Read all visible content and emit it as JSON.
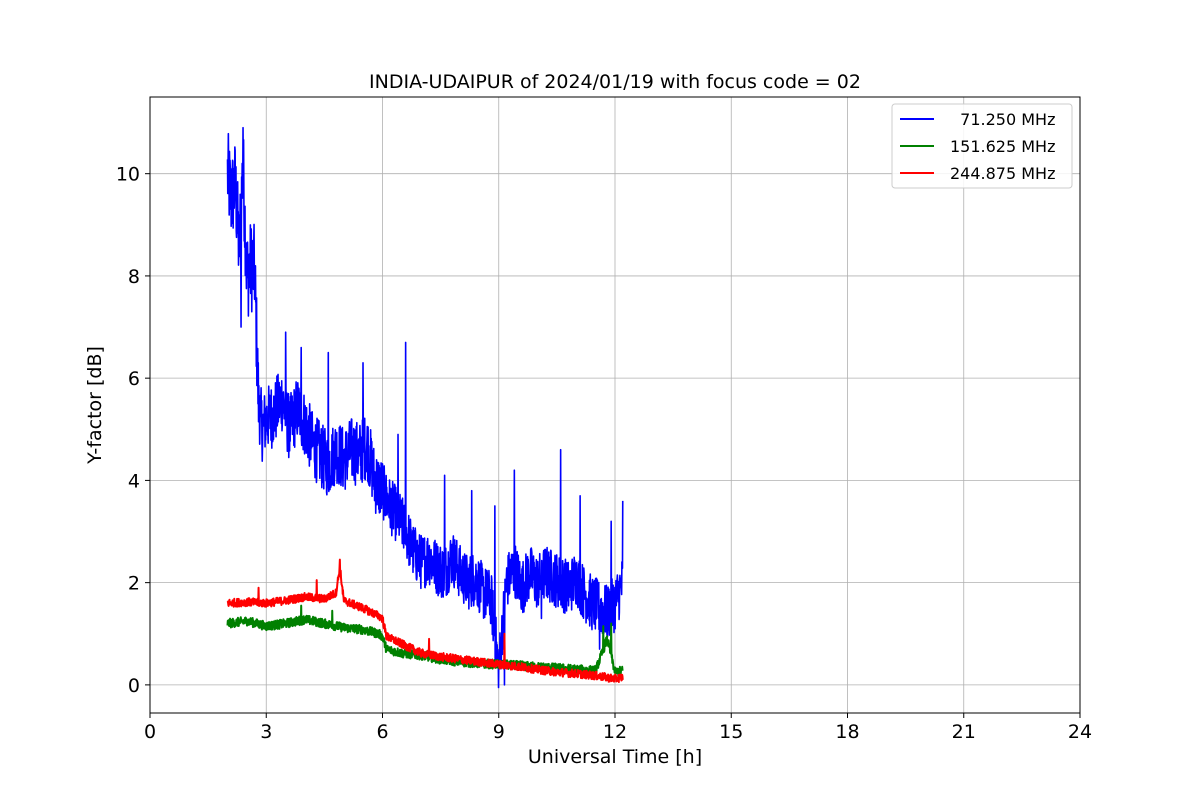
{
  "chart_data": {
    "type": "line",
    "title": "INDIA-UDAIPUR of 2024/01/19 with focus code = 02",
    "xlabel": "Universal Time [h]",
    "ylabel": "Y-factor [dB]",
    "xlim": [
      0,
      24
    ],
    "ylim": [
      -0.55,
      11.5
    ],
    "xticks": [
      0,
      3,
      6,
      9,
      12,
      15,
      18,
      21,
      24
    ],
    "yticks": [
      0,
      2,
      4,
      6,
      8,
      10
    ],
    "grid": true,
    "legend_position": "top-right",
    "series": [
      {
        "name": "71.250 MHz",
        "legend_label": "  71.250 MHz",
        "color": "#0000ff",
        "x": [
          2.0,
          2.1,
          2.2,
          2.3,
          2.4,
          2.5,
          2.6,
          2.7,
          2.8,
          2.9,
          3.0,
          3.2,
          3.4,
          3.6,
          3.8,
          4.0,
          4.2,
          4.4,
          4.6,
          4.8,
          5.0,
          5.2,
          5.4,
          5.6,
          5.8,
          6.0,
          6.2,
          6.4,
          6.6,
          6.8,
          7.0,
          7.2,
          7.4,
          7.6,
          7.8,
          8.0,
          8.2,
          8.4,
          8.6,
          8.8,
          9.0,
          9.2,
          9.4,
          9.6,
          9.8,
          10.0,
          10.2,
          10.4,
          10.6,
          10.8,
          11.0,
          11.2,
          11.4,
          11.6,
          11.8,
          12.0,
          12.2
        ],
        "y": [
          10.0,
          9.5,
          9.8,
          8.5,
          10.2,
          8.0,
          8.2,
          8.1,
          5.5,
          5.0,
          5.2,
          5.3,
          5.6,
          5.0,
          5.4,
          5.1,
          4.7,
          4.5,
          4.3,
          4.6,
          4.4,
          4.6,
          4.5,
          4.7,
          4.0,
          3.8,
          3.5,
          3.3,
          3.0,
          2.6,
          2.4,
          2.5,
          2.3,
          2.2,
          2.5,
          2.2,
          2.0,
          2.1,
          1.8,
          1.7,
          0.3,
          2.0,
          2.3,
          1.9,
          2.2,
          2.0,
          2.2,
          2.1,
          2.0,
          1.9,
          2.1,
          1.8,
          1.6,
          1.5,
          1.4,
          1.6,
          2.0
        ],
        "peaks": [
          [
            2.4,
            10.9
          ],
          [
            2.35,
            7.0
          ],
          [
            3.5,
            6.9
          ],
          [
            3.9,
            6.6
          ],
          [
            4.6,
            6.5
          ],
          [
            5.5,
            6.3
          ],
          [
            6.6,
            6.7
          ],
          [
            6.4,
            4.9
          ],
          [
            7.6,
            4.1
          ],
          [
            8.3,
            3.8
          ],
          [
            8.9,
            3.5
          ],
          [
            9.4,
            4.2
          ],
          [
            10.6,
            4.6
          ],
          [
            11.1,
            3.7
          ],
          [
            11.9,
            3.2
          ],
          [
            12.2,
            3.6
          ],
          [
            8.8,
            1.2
          ],
          [
            9.15,
            0.0
          ],
          [
            10.1,
            1.3
          ],
          [
            11.6,
            0.7
          ]
        ]
      },
      {
        "name": "151.625 MHz",
        "legend_label": "151.625 MHz",
        "color": "#008000",
        "x": [
          2.0,
          2.5,
          3.0,
          3.5,
          4.0,
          4.5,
          5.0,
          5.5,
          5.9,
          6.0,
          6.1,
          6.5,
          7.0,
          7.5,
          8.0,
          8.5,
          9.0,
          9.5,
          10.0,
          10.5,
          11.0,
          11.5,
          11.8,
          12.0,
          12.2
        ],
        "y": [
          1.2,
          1.25,
          1.15,
          1.2,
          1.28,
          1.2,
          1.12,
          1.08,
          1.0,
          0.95,
          0.7,
          0.62,
          0.58,
          0.5,
          0.45,
          0.42,
          0.4,
          0.38,
          0.35,
          0.33,
          0.3,
          0.28,
          0.9,
          0.25,
          0.28
        ],
        "peaks": [
          [
            3.9,
            1.55
          ],
          [
            4.7,
            1.45
          ],
          [
            11.7,
            1.15
          ],
          [
            11.9,
            1.2
          ]
        ]
      },
      {
        "name": "244.875 MHz",
        "legend_label": "244.875 MHz",
        "color": "#ff0000",
        "x": [
          2.0,
          2.5,
          3.0,
          3.5,
          4.0,
          4.5,
          4.8,
          4.9,
          5.0,
          5.5,
          5.9,
          6.0,
          6.1,
          6.5,
          7.0,
          7.5,
          8.0,
          8.5,
          9.0,
          9.5,
          10.0,
          10.5,
          11.0,
          11.5,
          12.0,
          12.2
        ],
        "y": [
          1.6,
          1.62,
          1.6,
          1.65,
          1.72,
          1.68,
          1.8,
          2.3,
          1.65,
          1.5,
          1.35,
          1.3,
          0.95,
          0.8,
          0.62,
          0.55,
          0.5,
          0.45,
          0.4,
          0.36,
          0.3,
          0.25,
          0.22,
          0.18,
          0.12,
          0.15
        ],
        "peaks": [
          [
            2.8,
            1.9
          ],
          [
            4.3,
            2.05
          ],
          [
            4.9,
            2.45
          ],
          [
            7.2,
            0.9
          ],
          [
            9.15,
            1.0
          ]
        ]
      }
    ]
  }
}
